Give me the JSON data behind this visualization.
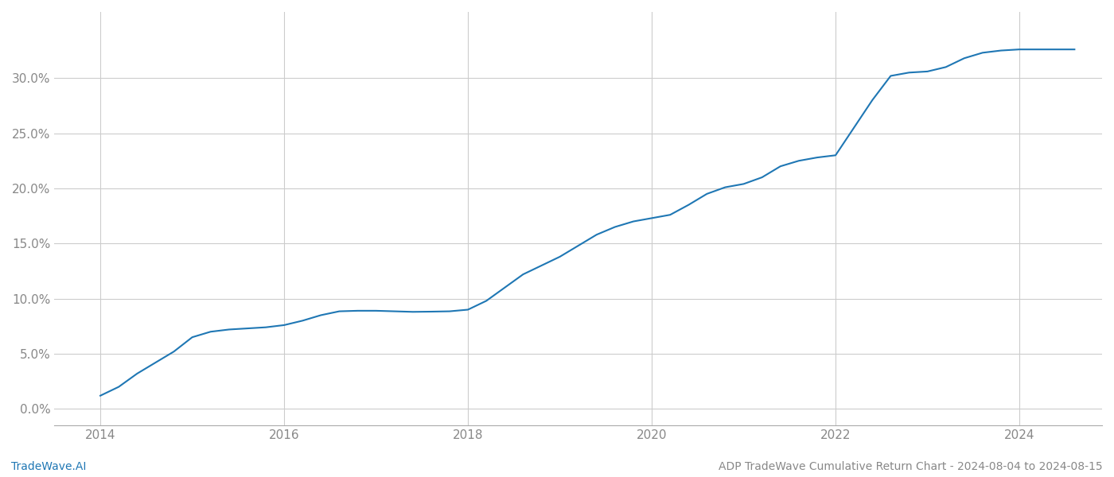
{
  "footer_left": "TradeWave.AI",
  "footer_right": "ADP TradeWave Cumulative Return Chart - 2024-08-04 to 2024-08-15",
  "line_color": "#1f77b4",
  "line_width": 1.5,
  "background_color": "#ffffff",
  "grid_color": "#cccccc",
  "x_values": [
    2014.0,
    2014.2,
    2014.4,
    2014.6,
    2014.8,
    2015.0,
    2015.2,
    2015.4,
    2015.6,
    2015.8,
    2016.0,
    2016.2,
    2016.4,
    2016.6,
    2016.8,
    2017.0,
    2017.2,
    2017.4,
    2017.6,
    2017.8,
    2018.0,
    2018.2,
    2018.4,
    2018.6,
    2018.8,
    2019.0,
    2019.2,
    2019.4,
    2019.6,
    2019.8,
    2020.0,
    2020.2,
    2020.4,
    2020.6,
    2020.8,
    2021.0,
    2021.2,
    2021.4,
    2021.6,
    2021.8,
    2022.0,
    2022.2,
    2022.4,
    2022.6,
    2022.8,
    2023.0,
    2023.2,
    2023.4,
    2023.6,
    2023.8,
    2024.0,
    2024.2,
    2024.4,
    2024.6
  ],
  "y_values": [
    1.2,
    2.0,
    3.2,
    4.2,
    5.2,
    6.5,
    7.0,
    7.2,
    7.3,
    7.4,
    7.6,
    8.0,
    8.5,
    8.85,
    8.9,
    8.9,
    8.85,
    8.8,
    8.82,
    8.85,
    9.0,
    9.8,
    11.0,
    12.2,
    13.0,
    13.8,
    14.8,
    15.8,
    16.5,
    17.0,
    17.3,
    17.6,
    18.5,
    19.5,
    20.1,
    20.4,
    21.0,
    22.0,
    22.5,
    22.8,
    23.0,
    25.5,
    28.0,
    30.2,
    30.5,
    30.6,
    31.0,
    31.8,
    32.3,
    32.5,
    32.6,
    32.6,
    32.6,
    32.6
  ],
  "xlim": [
    2013.5,
    2024.9
  ],
  "ylim": [
    -1.5,
    36.0
  ],
  "xticks": [
    2014,
    2016,
    2018,
    2020,
    2022,
    2024
  ],
  "yticks": [
    0.0,
    5.0,
    10.0,
    15.0,
    20.0,
    25.0,
    30.0
  ],
  "tick_label_color": "#888888",
  "tick_fontsize": 11,
  "footer_fontsize": 10,
  "footer_left_color": "#1f77b4",
  "footer_right_color": "#888888"
}
